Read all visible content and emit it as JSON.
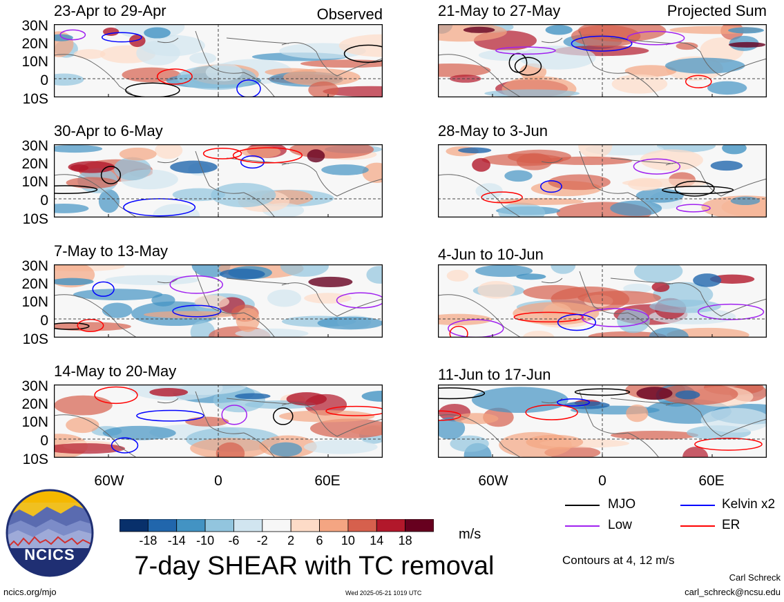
{
  "observed_label": "Observed",
  "projected_label": "Projected Sum",
  "panels": [
    {
      "title": "23-Apr to 29-Apr"
    },
    {
      "title": "30-Apr to 6-May"
    },
    {
      "title": "7-May to 13-May"
    },
    {
      "title": "14-May to 20-May"
    },
    {
      "title": "21-May to 27-May"
    },
    {
      "title": "28-May to 3-Jun"
    },
    {
      "title": "4-Jun to 10-Jun"
    },
    {
      "title": "11-Jun to 17-Jun"
    }
  ],
  "lat_labels": [
    "30N",
    "20N",
    "10N",
    "0",
    "10S"
  ],
  "lon_labels": [
    "60W",
    "0",
    "60E"
  ],
  "colorbar": {
    "labels": [
      "-18",
      "-14",
      "-10",
      "-6",
      "-2",
      "2",
      "6",
      "10",
      "14",
      "18"
    ],
    "colors": [
      "#08306b",
      "#2166ac",
      "#4393c3",
      "#92c5de",
      "#d1e5f0",
      "#f7f7f7",
      "#fddbc7",
      "#f4a582",
      "#d6604d",
      "#b2182b",
      "#67001f"
    ],
    "units": "m/s"
  },
  "main_title": "7-day SHEAR with TC removal",
  "legend": {
    "items": [
      {
        "label": "MJO",
        "color": "#000000"
      },
      {
        "label": "Kelvin x2",
        "color": "#0000ff"
      },
      {
        "label": "Low",
        "color": "#a020f0"
      },
      {
        "label": "ER",
        "color": "#ff0000"
      }
    ],
    "contours": "Contours at 4, 12 m/s"
  },
  "logo_text": "NCICS",
  "footer": {
    "url": "ncics.org/mjo",
    "timestamp": "Wed 2025-05-21 1019 UTC",
    "author": "Carl Schreck",
    "email": "carl_schreck@ncsu.edu"
  },
  "chart_data": {
    "type": "heatmap",
    "variable": "7-day SHEAR with TC removal",
    "units": "m/s",
    "lat_range": [
      -10,
      30
    ],
    "lon_ticks": [
      "60W",
      "0",
      "60E"
    ],
    "color_levels": [
      -18,
      -14,
      -10,
      -6,
      -2,
      2,
      6,
      10,
      14,
      18
    ],
    "contour_levels": [
      4,
      12
    ],
    "contour_series": [
      "MJO",
      "Kelvin x2",
      "Low",
      "ER"
    ],
    "panels": [
      {
        "title": "23-Apr to 29-Apr",
        "group": "Observed"
      },
      {
        "title": "30-Apr to 6-May",
        "group": "Observed"
      },
      {
        "title": "7-May to 13-May",
        "group": "Observed"
      },
      {
        "title": "14-May to 20-May",
        "group": "Observed"
      },
      {
        "title": "21-May to 27-May",
        "group": "Projected Sum"
      },
      {
        "title": "28-May to 3-Jun",
        "group": "Projected Sum"
      },
      {
        "title": "4-Jun to 10-Jun",
        "group": "Projected Sum"
      },
      {
        "title": "11-Jun to 17-Jun",
        "group": "Projected Sum"
      }
    ]
  }
}
